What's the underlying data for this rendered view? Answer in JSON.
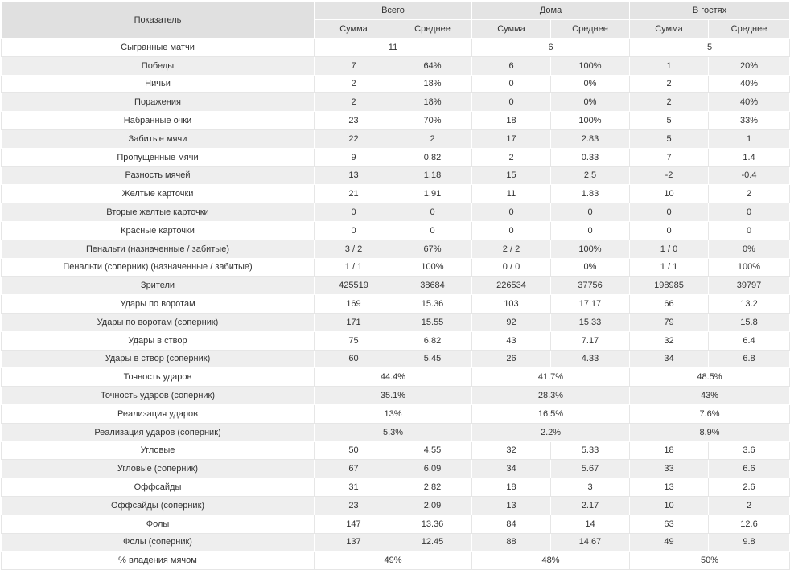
{
  "header": {
    "metric_label": "Показатель",
    "groups": [
      "Всего",
      "Дома",
      "В гостях"
    ],
    "sub": [
      "Сумма",
      "Среднее"
    ]
  },
  "rows": [
    {
      "label": "Сыгранные матчи",
      "merged": [
        "11",
        "6",
        "5"
      ]
    },
    {
      "label": "Победы",
      "values": [
        "7",
        "64%",
        "6",
        "100%",
        "1",
        "20%"
      ]
    },
    {
      "label": "Ничьи",
      "values": [
        "2",
        "18%",
        "0",
        "0%",
        "2",
        "40%"
      ]
    },
    {
      "label": "Поражения",
      "values": [
        "2",
        "18%",
        "0",
        "0%",
        "2",
        "40%"
      ]
    },
    {
      "label": "Набранные очки",
      "values": [
        "23",
        "70%",
        "18",
        "100%",
        "5",
        "33%"
      ]
    },
    {
      "label": "Забитые мячи",
      "values": [
        "22",
        "2",
        "17",
        "2.83",
        "5",
        "1"
      ]
    },
    {
      "label": "Пропущенные мячи",
      "values": [
        "9",
        "0.82",
        "2",
        "0.33",
        "7",
        "1.4"
      ]
    },
    {
      "label": "Разность мячей",
      "values": [
        "13",
        "1.18",
        "15",
        "2.5",
        "-2",
        "-0.4"
      ]
    },
    {
      "label": "Желтые карточки",
      "values": [
        "21",
        "1.91",
        "11",
        "1.83",
        "10",
        "2"
      ]
    },
    {
      "label": "Вторые желтые карточки",
      "values": [
        "0",
        "0",
        "0",
        "0",
        "0",
        "0"
      ]
    },
    {
      "label": "Красные карточки",
      "values": [
        "0",
        "0",
        "0",
        "0",
        "0",
        "0"
      ]
    },
    {
      "label": "Пенальти (назначенные / забитые)",
      "values": [
        "3 / 2",
        "67%",
        "2 / 2",
        "100%",
        "1 / 0",
        "0%"
      ]
    },
    {
      "label": "Пенальти (соперник) (назначенные / забитые)",
      "values": [
        "1 / 1",
        "100%",
        "0 / 0",
        "0%",
        "1 / 1",
        "100%"
      ]
    },
    {
      "label": "Зрители",
      "values": [
        "425519",
        "38684",
        "226534",
        "37756",
        "198985",
        "39797"
      ]
    },
    {
      "label": "Удары по воротам",
      "values": [
        "169",
        "15.36",
        "103",
        "17.17",
        "66",
        "13.2"
      ]
    },
    {
      "label": "Удары по воротам (соперник)",
      "values": [
        "171",
        "15.55",
        "92",
        "15.33",
        "79",
        "15.8"
      ]
    },
    {
      "label": "Удары в створ",
      "values": [
        "75",
        "6.82",
        "43",
        "7.17",
        "32",
        "6.4"
      ]
    },
    {
      "label": "Удары в створ (соперник)",
      "values": [
        "60",
        "5.45",
        "26",
        "4.33",
        "34",
        "6.8"
      ]
    },
    {
      "label": "Точность ударов",
      "merged": [
        "44.4%",
        "41.7%",
        "48.5%"
      ]
    },
    {
      "label": "Точность ударов (соперник)",
      "merged": [
        "35.1%",
        "28.3%",
        "43%"
      ]
    },
    {
      "label": "Реализация ударов",
      "merged": [
        "13%",
        "16.5%",
        "7.6%"
      ]
    },
    {
      "label": "Реализация ударов (соперник)",
      "merged": [
        "5.3%",
        "2.2%",
        "8.9%"
      ]
    },
    {
      "label": "Угловые",
      "values": [
        "50",
        "4.55",
        "32",
        "5.33",
        "18",
        "3.6"
      ]
    },
    {
      "label": "Угловые (соперник)",
      "values": [
        "67",
        "6.09",
        "34",
        "5.67",
        "33",
        "6.6"
      ]
    },
    {
      "label": "Оффсайды",
      "values": [
        "31",
        "2.82",
        "18",
        "3",
        "13",
        "2.6"
      ]
    },
    {
      "label": "Оффсайды (соперник)",
      "values": [
        "23",
        "2.09",
        "13",
        "2.17",
        "10",
        "2"
      ]
    },
    {
      "label": "Фолы",
      "values": [
        "147",
        "13.36",
        "84",
        "14",
        "63",
        "12.6"
      ]
    },
    {
      "label": "Фолы (соперник)",
      "values": [
        "137",
        "12.45",
        "88",
        "14.67",
        "49",
        "9.8"
      ]
    },
    {
      "label": "% владения мячом",
      "merged": [
        "49%",
        "48%",
        "50%"
      ]
    }
  ]
}
